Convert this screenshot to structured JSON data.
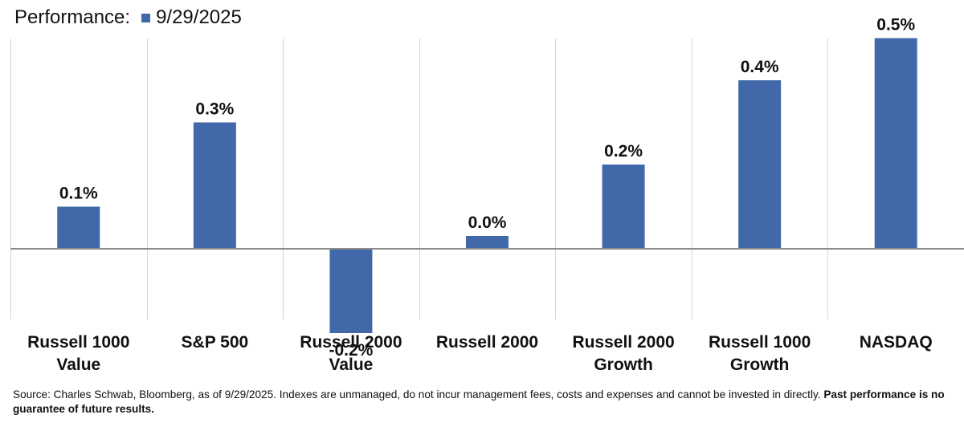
{
  "chart_data": {
    "type": "bar",
    "legend_title": "Performance:",
    "series": [
      {
        "name": "9/29/2025",
        "color": "#4169AA",
        "values": [
          0.1,
          0.3,
          -0.2,
          0.0,
          0.2,
          0.4,
          0.5
        ],
        "labels": [
          "0.1%",
          "0.3%",
          "-0.2%",
          "0.0%",
          "0.2%",
          "0.4%",
          "0.5%"
        ]
      }
    ],
    "categories": [
      [
        "Russell 1000",
        "Value"
      ],
      [
        "S&P 500"
      ],
      [
        "Russell 2000",
        "Value"
      ],
      [
        "Russell 2000"
      ],
      [
        "Russell 2000",
        "Growth"
      ],
      [
        "Russell 1000",
        "Growth"
      ],
      [
        "NASDAQ"
      ]
    ],
    "ylim": [
      -0.3,
      0.62
    ],
    "legend_position": "top-left",
    "grid": "vertical separators"
  },
  "footnote": {
    "text": "Source: Charles Schwab, Bloomberg, as of 9/29/2025.  Indexes are unmanaged, do not incur management fees, costs and expenses and cannot be invested in directly. ",
    "bold": "Past performance is no guarantee of future results."
  }
}
